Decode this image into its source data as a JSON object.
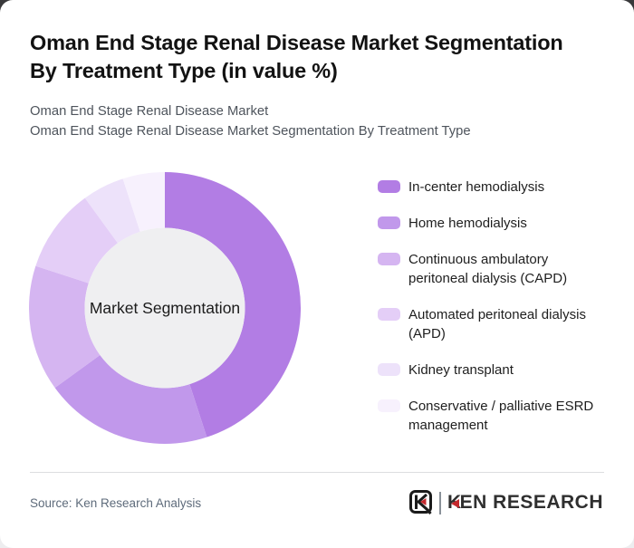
{
  "header": {
    "title_lines": [
      "Oman End Stage Renal Disease Market Segmentation",
      "By Treatment Type (in value %)"
    ],
    "subtitle_lines": [
      "Oman End Stage Renal Disease Market",
      "Oman End Stage Renal Disease Market Segmentation By Treatment Type"
    ]
  },
  "chart_data": {
    "type": "pie",
    "subtype": "donut",
    "title": "Oman End Stage Renal Disease Market Segmentation By Treatment Type (in value %)",
    "center_label": "Market Segmentation",
    "unit": "value %",
    "values_estimated_from_arc_angles": true,
    "start_angle_deg": 0,
    "direction": "clockwise",
    "inner_radius_ratio": 0.59,
    "hole_fill": "#efeff1",
    "legend_position": "right",
    "segments": [
      {
        "label": "In-center hemodialysis",
        "value": 45,
        "color": "#b27de4"
      },
      {
        "label": "Home hemodialysis",
        "value": 20,
        "color": "#c198eb"
      },
      {
        "label": "Continuous ambulatory peritoneal dialysis (CAPD)",
        "value": 15,
        "color": "#d5b5f1"
      },
      {
        "label": "Automated peritoneal dialysis (APD)",
        "value": 10,
        "color": "#e4cef7"
      },
      {
        "label": "Kidney transplant",
        "value": 5,
        "color": "#ede2fa"
      },
      {
        "label": "Conservative / palliative ESRD management",
        "value": 5,
        "color": "#f7f1fd"
      }
    ]
  },
  "footer": {
    "source": "Source: Ken Research Analysis",
    "brand": "KEN RESEARCH"
  },
  "colors": {
    "accent_red": "#c4282d",
    "card_bg": "#ffffff",
    "divider": "#dcdee0",
    "title_text": "#121212",
    "subtitle_text": "#4e545c",
    "source_text": "#5e6b7b"
  }
}
